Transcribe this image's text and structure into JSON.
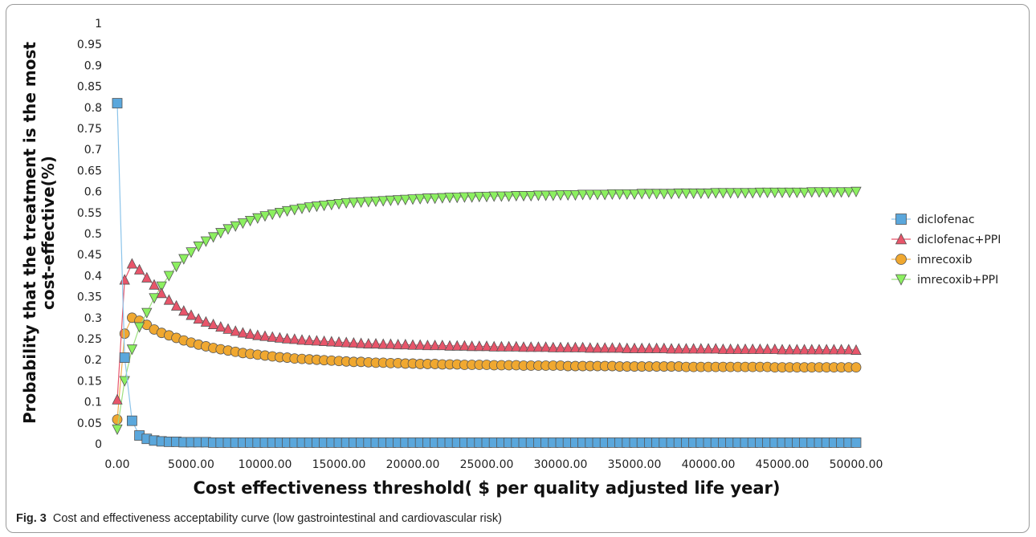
{
  "caption": {
    "label": "Fig. 3",
    "text": "Cost and effectiveness acceptability curve (low gastrointestinal and cardiovascular risk)"
  },
  "chart_data": {
    "type": "line",
    "title": "",
    "xlabel": "Cost effectiveness threshold( $ per quality adjusted life year)",
    "ylabel": "Probability that the treatment is the most cost-effective(%)",
    "xlim": [
      0,
      50000
    ],
    "ylim": [
      0,
      1
    ],
    "x_step": 500,
    "x_ticks": [
      "0.00",
      "5000.00",
      "10000.00",
      "15000.00",
      "20000.00",
      "25000.00",
      "30000.00",
      "35000.00",
      "40000.00",
      "45000.00",
      "50000.00"
    ],
    "y_ticks": [
      "0",
      "0.05",
      "0.1",
      "0.15",
      "0.2",
      "0.25",
      "0.3",
      "0.35",
      "0.4",
      "0.45",
      "0.5",
      "0.55",
      "0.6",
      "0.65",
      "0.7",
      "0.75",
      "0.8",
      "0.85",
      "0.9",
      "0.95",
      "1"
    ],
    "grid": false,
    "legend_position": "right",
    "series": [
      {
        "name": "diclofenac",
        "marker": "square",
        "color": "#5aa7dc",
        "line_color": "#8cc4ea",
        "values": [
          0.81,
          0.205,
          0.055,
          0.02,
          0.012,
          0.008,
          0.006,
          0.005,
          0.005,
          0.004,
          0.004,
          0.004,
          0.004,
          0.003,
          0.003,
          0.003,
          0.003,
          0.003,
          0.003,
          0.003,
          0.003,
          0.003,
          0.003,
          0.003,
          0.003,
          0.003,
          0.003,
          0.003,
          0.003,
          0.003,
          0.003,
          0.003,
          0.003,
          0.003,
          0.003,
          0.003,
          0.003,
          0.003,
          0.003,
          0.003,
          0.003,
          0.003,
          0.003,
          0.003,
          0.003,
          0.003,
          0.003,
          0.003,
          0.003,
          0.003,
          0.003,
          0.003,
          0.003,
          0.003,
          0.003,
          0.003,
          0.003,
          0.003,
          0.003,
          0.003,
          0.003,
          0.003,
          0.003,
          0.003,
          0.003,
          0.003,
          0.003,
          0.003,
          0.003,
          0.003,
          0.003,
          0.003,
          0.003,
          0.003,
          0.003,
          0.003,
          0.003,
          0.003,
          0.003,
          0.003,
          0.003,
          0.003,
          0.003,
          0.003,
          0.003,
          0.003,
          0.003,
          0.003,
          0.003,
          0.003,
          0.003,
          0.003,
          0.003,
          0.003,
          0.003,
          0.003,
          0.003,
          0.003,
          0.003,
          0.003,
          0.003
        ]
      },
      {
        "name": "diclofenac+PPI",
        "marker": "triangle-up",
        "color": "#e8556a",
        "line_color": "#e8556a",
        "values": [
          0.105,
          0.39,
          0.428,
          0.414,
          0.395,
          0.378,
          0.358,
          0.342,
          0.328,
          0.316,
          0.306,
          0.297,
          0.29,
          0.284,
          0.278,
          0.273,
          0.268,
          0.264,
          0.261,
          0.258,
          0.256,
          0.254,
          0.252,
          0.25,
          0.249,
          0.247,
          0.246,
          0.245,
          0.244,
          0.243,
          0.242,
          0.241,
          0.24,
          0.239,
          0.238,
          0.238,
          0.237,
          0.237,
          0.236,
          0.236,
          0.235,
          0.235,
          0.234,
          0.234,
          0.234,
          0.233,
          0.233,
          0.233,
          0.232,
          0.232,
          0.232,
          0.231,
          0.231,
          0.231,
          0.231,
          0.23,
          0.23,
          0.23,
          0.23,
          0.229,
          0.229,
          0.229,
          0.229,
          0.229,
          0.228,
          0.228,
          0.228,
          0.228,
          0.228,
          0.227,
          0.227,
          0.227,
          0.227,
          0.227,
          0.227,
          0.226,
          0.226,
          0.226,
          0.226,
          0.226,
          0.226,
          0.226,
          0.225,
          0.225,
          0.225,
          0.225,
          0.225,
          0.225,
          0.225,
          0.225,
          0.224,
          0.224,
          0.224,
          0.224,
          0.224,
          0.224,
          0.224,
          0.224,
          0.224,
          0.224,
          0.223
        ]
      },
      {
        "name": "imrecoxib",
        "marker": "circle",
        "color": "#f0a830",
        "line_color": "#f0b050",
        "values": [
          0.058,
          0.262,
          0.3,
          0.293,
          0.283,
          0.272,
          0.264,
          0.258,
          0.252,
          0.246,
          0.241,
          0.236,
          0.232,
          0.228,
          0.225,
          0.222,
          0.219,
          0.216,
          0.214,
          0.212,
          0.21,
          0.208,
          0.206,
          0.205,
          0.203,
          0.202,
          0.201,
          0.2,
          0.199,
          0.198,
          0.197,
          0.196,
          0.195,
          0.195,
          0.194,
          0.193,
          0.193,
          0.192,
          0.192,
          0.191,
          0.191,
          0.19,
          0.19,
          0.19,
          0.189,
          0.189,
          0.189,
          0.188,
          0.188,
          0.188,
          0.188,
          0.187,
          0.187,
          0.187,
          0.187,
          0.186,
          0.186,
          0.186,
          0.186,
          0.186,
          0.186,
          0.185,
          0.185,
          0.185,
          0.185,
          0.185,
          0.185,
          0.185,
          0.184,
          0.184,
          0.184,
          0.184,
          0.184,
          0.184,
          0.184,
          0.184,
          0.184,
          0.183,
          0.183,
          0.183,
          0.183,
          0.183,
          0.183,
          0.183,
          0.183,
          0.183,
          0.183,
          0.183,
          0.183,
          0.182,
          0.182,
          0.182,
          0.182,
          0.182,
          0.182,
          0.182,
          0.182,
          0.182,
          0.182,
          0.182,
          0.182
        ]
      },
      {
        "name": "imrecoxib+PPI",
        "marker": "triangle-down",
        "color": "#8cf060",
        "line_color": "#9ee080",
        "values": [
          0.035,
          0.15,
          0.225,
          0.278,
          0.312,
          0.347,
          0.375,
          0.4,
          0.422,
          0.44,
          0.456,
          0.47,
          0.482,
          0.492,
          0.502,
          0.511,
          0.518,
          0.525,
          0.531,
          0.537,
          0.542,
          0.546,
          0.55,
          0.554,
          0.557,
          0.56,
          0.563,
          0.565,
          0.567,
          0.569,
          0.571,
          0.573,
          0.574,
          0.575,
          0.576,
          0.577,
          0.578,
          0.579,
          0.58,
          0.581,
          0.582,
          0.583,
          0.584,
          0.584,
          0.585,
          0.586,
          0.586,
          0.587,
          0.587,
          0.588,
          0.588,
          0.589,
          0.589,
          0.589,
          0.59,
          0.59,
          0.59,
          0.591,
          0.591,
          0.591,
          0.592,
          0.592,
          0.592,
          0.593,
          0.593,
          0.593,
          0.593,
          0.594,
          0.594,
          0.594,
          0.594,
          0.595,
          0.595,
          0.595,
          0.595,
          0.595,
          0.596,
          0.596,
          0.596,
          0.596,
          0.596,
          0.597,
          0.597,
          0.597,
          0.597,
          0.597,
          0.597,
          0.598,
          0.598,
          0.598,
          0.598,
          0.598,
          0.598,
          0.598,
          0.599,
          0.599,
          0.599,
          0.599,
          0.599,
          0.599,
          0.6
        ]
      }
    ]
  }
}
